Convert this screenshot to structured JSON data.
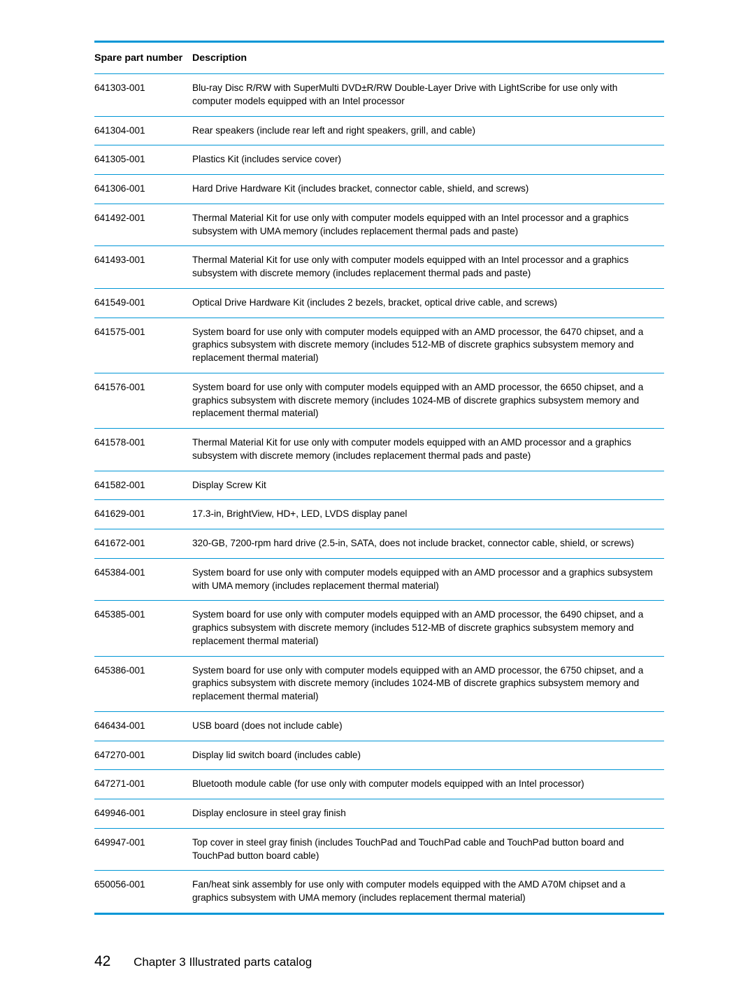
{
  "table": {
    "headers": {
      "col0": "Spare part number",
      "col1": "Description"
    },
    "rows": [
      {
        "part": "641303-001",
        "desc": "Blu-ray Disc R/RW with SuperMulti DVD±R/RW Double-Layer Drive with LightScribe for use only with computer models equipped with an Intel processor"
      },
      {
        "part": "641304-001",
        "desc": "Rear speakers (include rear left and right speakers, grill, and cable)"
      },
      {
        "part": "641305-001",
        "desc": "Plastics Kit (includes service cover)"
      },
      {
        "part": "641306-001",
        "desc": "Hard Drive Hardware Kit (includes bracket, connector cable, shield, and screws)"
      },
      {
        "part": "641492-001",
        "desc": "Thermal Material Kit for use only with computer models equipped with an Intel processor and a graphics subsystem with UMA memory (includes replacement thermal pads and paste)"
      },
      {
        "part": "641493-001",
        "desc": "Thermal Material Kit for use only with computer models equipped with an Intel processor and a graphics subsystem with discrete memory (includes replacement thermal pads and paste)"
      },
      {
        "part": "641549-001",
        "desc": "Optical Drive Hardware Kit (includes 2 bezels, bracket, optical drive cable, and screws)"
      },
      {
        "part": "641575-001",
        "desc": "System board for use only with computer models equipped with an AMD processor, the 6470 chipset, and a graphics subsystem with discrete memory (includes 512-MB of discrete graphics subsystem memory and replacement thermal material)"
      },
      {
        "part": "641576-001",
        "desc": "System board for use only with computer models equipped with an AMD processor, the 6650 chipset, and a graphics subsystem with discrete memory (includes 1024-MB of discrete graphics subsystem memory and replacement thermal material)"
      },
      {
        "part": "641578-001",
        "desc": "Thermal Material Kit for use only with computer models equipped with an AMD processor and a graphics subsystem with discrete memory (includes replacement thermal pads and paste)"
      },
      {
        "part": "641582-001",
        "desc": "Display Screw Kit"
      },
      {
        "part": "641629-001",
        "desc": "17.3-in, BrightView, HD+, LED, LVDS display panel"
      },
      {
        "part": "641672-001",
        "desc": "320-GB, 7200-rpm hard drive (2.5-in, SATA, does not include bracket, connector cable, shield, or screws)"
      },
      {
        "part": "645384-001",
        "desc": "System board for use only with computer models equipped with an AMD processor and a graphics subsystem with UMA memory (includes replacement thermal material)"
      },
      {
        "part": "645385-001",
        "desc": "System board for use only with computer models equipped with an AMD processor, the 6490 chipset, and a graphics subsystem with discrete memory (includes 512-MB of discrete graphics subsystem memory and replacement thermal material)"
      },
      {
        "part": "645386-001",
        "desc": "System board for use only with computer models equipped with an AMD processor, the 6750 chipset, and a graphics subsystem with discrete memory (includes 1024-MB of discrete graphics subsystem memory and replacement thermal material)"
      },
      {
        "part": "646434-001",
        "desc": "USB board (does not include cable)"
      },
      {
        "part": "647270-001",
        "desc": "Display lid switch board (includes cable)"
      },
      {
        "part": "647271-001",
        "desc": "Bluetooth module cable (for use only with computer models equipped with an Intel processor)"
      },
      {
        "part": "649946-001",
        "desc": "Display enclosure in steel gray finish"
      },
      {
        "part": "649947-001",
        "desc": "Top cover in steel gray finish (includes TouchPad and TouchPad cable and TouchPad button board and TouchPad button board cable)"
      },
      {
        "part": "650056-001",
        "desc": "Fan/heat sink assembly for use only with computer models equipped with the AMD A70M chipset and a graphics subsystem with UMA memory (includes replacement thermal material)"
      }
    ]
  },
  "footer": {
    "page_number": "42",
    "chapter_label": "Chapter 3   Illustrated parts catalog"
  }
}
